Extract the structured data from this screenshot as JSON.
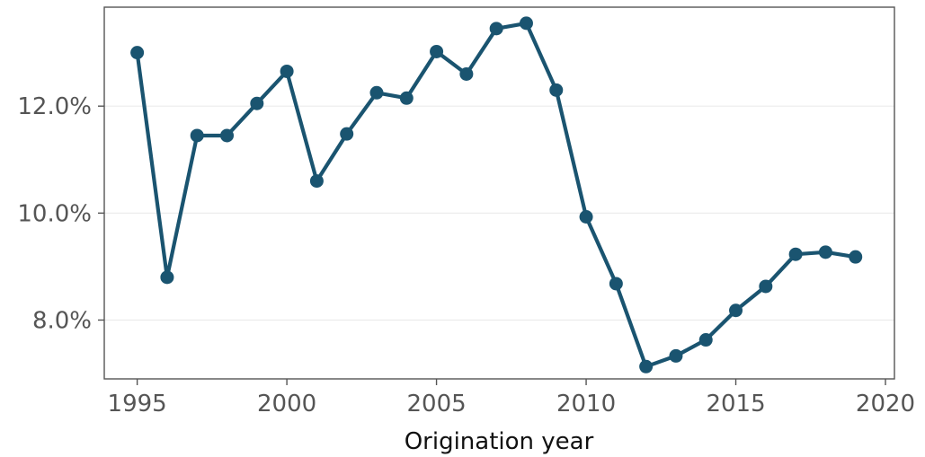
{
  "chart_data": {
    "type": "line",
    "title": "",
    "xlabel": "Origination year",
    "ylabel": "",
    "xlim": [
      1993.9,
      2020.3
    ],
    "ylim": [
      6.9,
      13.85
    ],
    "x_ticks": [
      1995,
      2000,
      2005,
      2010,
      2015,
      2020
    ],
    "y_ticks": [
      8.0,
      10.0,
      12.0
    ],
    "y_tick_format": "percent_1dp",
    "grid": true,
    "legend": "none",
    "series": [
      {
        "color": "#1a5470",
        "x": [
          1995,
          1996,
          1997,
          1998,
          1999,
          2000,
          2001,
          2002,
          2003,
          2004,
          2005,
          2006,
          2007,
          2008,
          2009,
          2010,
          2011,
          2012,
          2013,
          2014,
          2015,
          2016,
          2017,
          2018,
          2019
        ],
        "y": [
          13.0,
          8.8,
          11.45,
          11.45,
          12.05,
          12.65,
          10.6,
          11.48,
          12.25,
          12.15,
          13.02,
          12.6,
          13.45,
          13.55,
          12.3,
          9.93,
          8.68,
          7.13,
          7.33,
          7.63,
          8.18,
          8.63,
          9.23,
          9.27,
          9.18
        ]
      }
    ]
  }
}
